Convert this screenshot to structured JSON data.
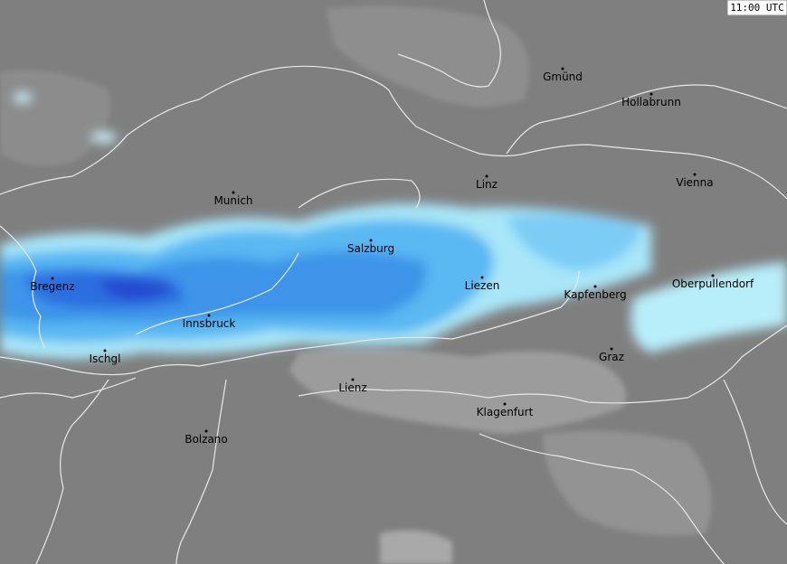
{
  "timestamp": "11:00 UTC",
  "cities": [
    "Gmünd",
    "Hollabrunn",
    "Linz",
    "Vienna",
    "Munich",
    "Salzburg",
    "Bregenz",
    "Liezen",
    "Kapfenberg",
    "Oberpullendorf",
    "Innsbruck",
    "Ischgl",
    "Graz",
    "Lienz",
    "Klagenfurt",
    "Bolzano"
  ]
}
